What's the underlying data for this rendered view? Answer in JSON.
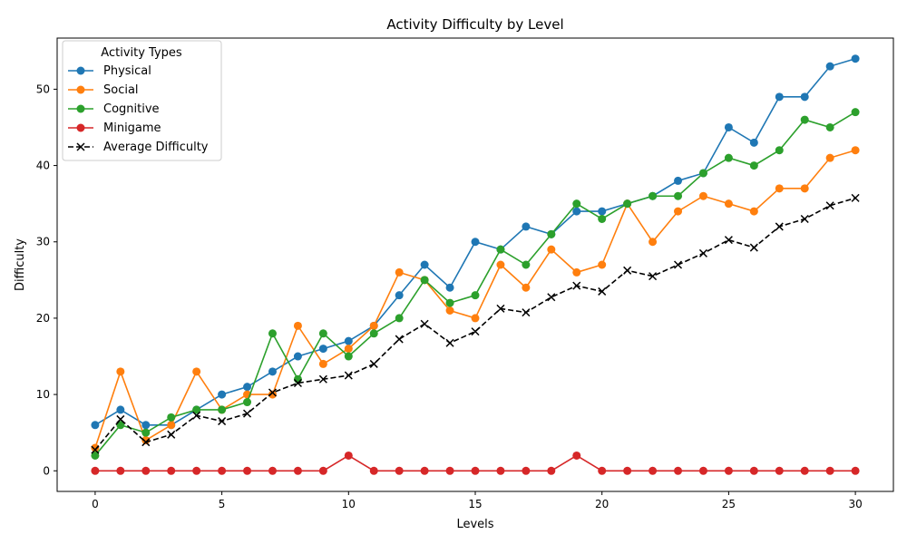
{
  "chart_data": {
    "type": "line",
    "title": "Activity Difficulty by Level",
    "xlabel": "Levels",
    "ylabel": "Difficulty",
    "xlim": [
      -1.5,
      31.5
    ],
    "ylim": [
      -2.7,
      56.7
    ],
    "xticks": [
      0,
      5,
      10,
      15,
      20,
      25,
      30
    ],
    "yticks": [
      0,
      10,
      20,
      30,
      40,
      50
    ],
    "legend_title": "Activity Types",
    "legend_position": "upper-left",
    "x": [
      0,
      1,
      2,
      3,
      4,
      5,
      6,
      7,
      8,
      9,
      10,
      11,
      12,
      13,
      14,
      15,
      16,
      17,
      18,
      19,
      20,
      21,
      22,
      23,
      24,
      25,
      26,
      27,
      28,
      29,
      30
    ],
    "series": [
      {
        "name": "Physical",
        "color": "#1f77b4",
        "marker": "o",
        "style": "solid",
        "values": [
          6,
          8,
          6,
          6,
          8,
          10,
          11,
          13,
          15,
          16,
          17,
          19,
          23,
          27,
          24,
          30,
          29,
          32,
          31,
          34,
          34,
          35,
          36,
          38,
          39,
          45,
          43,
          49,
          49,
          53,
          54
        ]
      },
      {
        "name": "Social",
        "color": "#ff7f0e",
        "marker": "o",
        "style": "solid",
        "values": [
          3,
          13,
          4,
          6,
          13,
          8,
          10,
          10,
          19,
          14,
          16,
          19,
          26,
          25,
          21,
          20,
          27,
          24,
          29,
          26,
          27,
          35,
          30,
          34,
          36,
          35,
          34,
          37,
          37,
          41,
          42
        ]
      },
      {
        "name": "Cognitive",
        "color": "#2ca02c",
        "marker": "o",
        "style": "solid",
        "values": [
          2,
          6,
          5,
          7,
          8,
          8,
          9,
          18,
          12,
          18,
          15,
          18,
          20,
          25,
          22,
          23,
          29,
          27,
          31,
          35,
          33,
          35,
          36,
          36,
          39,
          41,
          40,
          42,
          46,
          45,
          47
        ]
      },
      {
        "name": "Minigame",
        "color": "#d62728",
        "marker": "o",
        "style": "solid",
        "values": [
          0,
          0,
          0,
          0,
          0,
          0,
          0,
          0,
          0,
          0,
          2,
          0,
          0,
          0,
          0,
          0,
          0,
          0,
          0,
          2,
          0,
          0,
          0,
          0,
          0,
          0,
          0,
          0,
          0,
          0,
          0
        ]
      },
      {
        "name": "Average Difficulty",
        "color": "#000000",
        "marker": "x",
        "style": "dashed",
        "values": [
          2.75,
          6.75,
          3.75,
          4.75,
          7.25,
          6.5,
          7.5,
          10.25,
          11.5,
          12.0,
          12.5,
          14.0,
          17.25,
          19.25,
          16.75,
          18.25,
          21.25,
          20.75,
          22.75,
          24.25,
          23.5,
          26.25,
          25.5,
          27.0,
          28.5,
          30.25,
          29.25,
          32.0,
          33.0,
          34.75,
          35.75
        ]
      }
    ]
  }
}
